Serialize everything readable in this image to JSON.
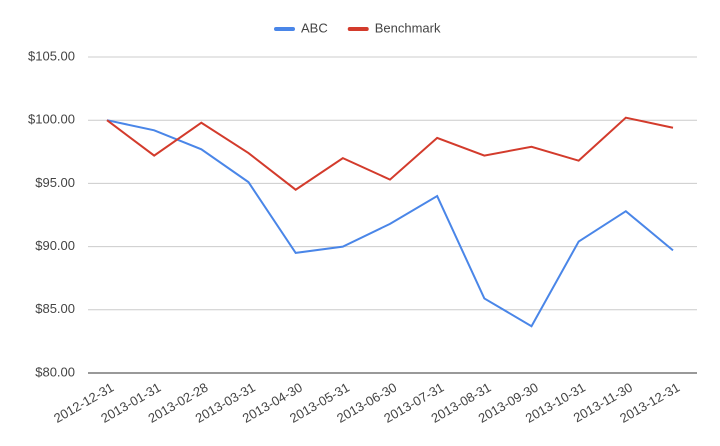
{
  "chart_data": {
    "type": "line",
    "categories": [
      "2012-12-31",
      "2013-01-31",
      "2013-02-28",
      "2013-03-31",
      "2013-04-30",
      "2013-05-31",
      "2013-06-30",
      "2013-07-31",
      "2013-08-31",
      "2013-09-30",
      "2013-10-31",
      "2013-11-30",
      "2013-12-31"
    ],
    "series": [
      {
        "name": "ABC",
        "color": "#4a86e8",
        "values": [
          100,
          99.2,
          97.7,
          95.1,
          89.5,
          90.0,
          91.8,
          94.0,
          85.9,
          83.7,
          90.4,
          92.8,
          89.7
        ]
      },
      {
        "name": "Benchmark",
        "color": "#d33b2c",
        "values": [
          100,
          97.2,
          99.8,
          97.4,
          94.5,
          97.0,
          95.3,
          98.6,
          97.2,
          97.9,
          96.8,
          100.2,
          99.4
        ]
      }
    ],
    "ylim": [
      80,
      105
    ],
    "yticks": [
      {
        "value": 80,
        "label": "$80.00"
      },
      {
        "value": 85,
        "label": "$85.00"
      },
      {
        "value": 90,
        "label": "$90.00"
      },
      {
        "value": 95,
        "label": "$95.00"
      },
      {
        "value": 100,
        "label": "$100.00"
      },
      {
        "value": 105,
        "label": "$105.00"
      }
    ],
    "grid": true,
    "legend": "top"
  }
}
